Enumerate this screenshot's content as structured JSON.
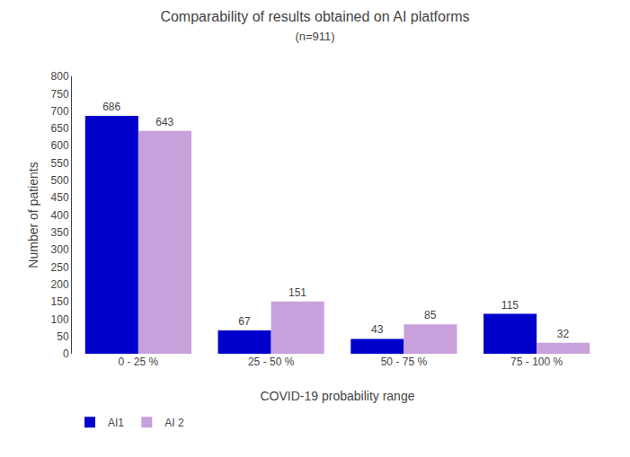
{
  "chart_data": {
    "type": "bar",
    "title": "Comparability of results obtained on AI platforms",
    "subtitle": "(n=911)",
    "xlabel": "COVID-19 probability range",
    "ylabel": "Number of patients",
    "categories": [
      "0 - 25 %",
      "25 - 50 %",
      "50 - 75 %",
      "75 - 100 %"
    ],
    "series": [
      {
        "name": "AI1",
        "color": "#0000CC",
        "values": [
          686,
          67,
          43,
          115
        ]
      },
      {
        "name": "AI 2",
        "color": "#C8A0DC",
        "values": [
          643,
          151,
          85,
          32
        ]
      }
    ],
    "ylim": [
      0,
      800
    ],
    "yticks": [
      0,
      50,
      100,
      150,
      200,
      250,
      300,
      350,
      400,
      450,
      500,
      550,
      600,
      650,
      700,
      750,
      800
    ],
    "grid": false,
    "legend": "lower left",
    "data_labels": true
  }
}
